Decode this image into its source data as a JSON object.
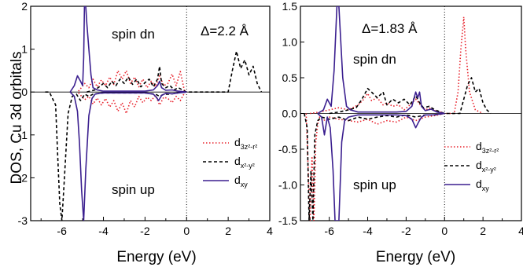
{
  "ylabel": "DOS, Cu 3d orbitals",
  "colors": {
    "d3z2": "#e8222c",
    "dx2y2": "#000000",
    "dxy": "#3b1f8f"
  },
  "chart_data": [
    {
      "type": "line",
      "xlabel": "Energy (eV)",
      "ylabel": "DOS, Cu 3d orbitals",
      "xlim": [
        -7.5,
        4
      ],
      "ylim": [
        -3,
        2
      ],
      "xticks": [
        "-6",
        "-4",
        "-2",
        "0",
        "2",
        "4"
      ],
      "yticks": [
        "-3",
        "-2",
        "-1",
        "0",
        "1",
        "2"
      ],
      "annotations": {
        "spin_dn": "spin dn",
        "spin_up": "spin up",
        "delta": "Δ=2.2 Å"
      },
      "legend_position": "lower-right",
      "legend": [
        {
          "base": "d",
          "sub": "3z²-r²",
          "style": "dotted",
          "color": "#e8222c"
        },
        {
          "base": "d",
          "sub": "x²-y²",
          "style": "dashed",
          "color": "#000000"
        },
        {
          "base": "d",
          "sub": "xy",
          "style": "solid",
          "color": "#3b1f8f"
        }
      ],
      "fermi_level": 0,
      "series": [
        {
          "key": "d3z2_dn",
          "style": "dotted",
          "color": "#e8222c",
          "x": [
            -5.2,
            -4.9,
            -4.7,
            -4.5,
            -4.3,
            -4.1,
            -3.9,
            -3.7,
            -3.5,
            -3.3,
            -3.1,
            -2.9,
            -2.7,
            -2.5,
            -2.3,
            -2.1,
            -1.9,
            -1.7,
            -1.5,
            -1.3,
            -1.1,
            -0.9,
            -0.7,
            -0.5,
            -0.3,
            -0.1
          ],
          "y": [
            0.02,
            0.2,
            0.1,
            0.3,
            0.12,
            0.28,
            0.15,
            0.35,
            0.18,
            0.5,
            0.3,
            0.5,
            0.2,
            0.35,
            0.12,
            0.3,
            0.1,
            0.25,
            0.12,
            0.38,
            0.15,
            0.2,
            0.42,
            0.15,
            0.48,
            0.02
          ]
        },
        {
          "key": "d3z2_up",
          "style": "dotted",
          "color": "#e8222c",
          "x": [
            -5.2,
            -4.9,
            -4.7,
            -4.5,
            -4.3,
            -4.1,
            -3.9,
            -3.7,
            -3.5,
            -3.3,
            -3.1,
            -2.9,
            -2.7,
            -2.5,
            -2.3,
            -2.1,
            -1.9,
            -1.7,
            -1.5,
            -1.3,
            -1.1,
            -0.9,
            -0.7,
            -0.5,
            -0.3,
            -0.1
          ],
          "y": [
            -0.02,
            -0.18,
            -0.1,
            -0.28,
            -0.14,
            -0.3,
            -0.15,
            -0.35,
            -0.2,
            -0.45,
            -0.25,
            -0.5,
            -0.2,
            -0.35,
            -0.1,
            -0.25,
            -0.12,
            -0.2,
            -0.08,
            -0.3,
            -0.12,
            -0.15,
            -0.25,
            -0.1,
            -0.2,
            -0.02
          ]
        },
        {
          "key": "dx2y2_dn",
          "style": "dashed",
          "color": "#000000",
          "x": [
            -4.8,
            -4.4,
            -4.2,
            -4.0,
            -3.8,
            -3.6,
            -3.4,
            -3.2,
            -3.0,
            -2.8,
            -2.6,
            -2.4,
            -2.2,
            -2.0,
            -1.8,
            -1.6,
            -1.4,
            -1.3,
            -1.2,
            -1.0,
            -0.8,
            -0.6,
            -0.4,
            -0.2,
            0.0,
            2.0,
            2.2,
            2.4,
            2.6,
            2.8,
            3.0,
            3.2,
            3.4,
            3.6
          ],
          "y": [
            0.0,
            0.05,
            0.12,
            0.2,
            0.1,
            0.25,
            0.15,
            0.3,
            0.2,
            0.35,
            0.18,
            0.3,
            0.12,
            0.22,
            0.3,
            0.12,
            0.3,
            0.6,
            0.2,
            0.1,
            0.15,
            0.05,
            0.1,
            0.05,
            0.0,
            0.0,
            0.5,
            0.95,
            0.55,
            0.75,
            0.4,
            0.6,
            0.2,
            0.0
          ]
        },
        {
          "key": "dx2y2_up",
          "style": "dashed",
          "color": "#000000",
          "x": [
            -6.8,
            -6.6,
            -6.5,
            -6.3,
            -6.2,
            -6.1,
            -6.0,
            -5.9,
            -5.7,
            -5.5,
            -5.3,
            -5.1,
            -4.9,
            -4.7,
            -4.5,
            -4.0,
            -3.0,
            -2.0,
            -1.5,
            -1.3,
            -1.1,
            -0.8,
            -0.4,
            0.0
          ],
          "y": [
            0.0,
            0.0,
            -0.1,
            -0.3,
            -1.5,
            -2.6,
            -3.0,
            -2.2,
            -0.5,
            -0.1,
            -0.05,
            -0.2,
            -0.05,
            -0.1,
            -0.05,
            -0.02,
            -0.02,
            -0.02,
            -0.05,
            -0.1,
            -0.05,
            -0.05,
            -0.02,
            0.0
          ]
        },
        {
          "key": "dxy_dn",
          "style": "solid",
          "color": "#3b1f8f",
          "x": [
            -5.6,
            -5.4,
            -5.25,
            -5.1,
            -5.0,
            -4.95,
            -4.9,
            -4.8,
            -4.7,
            -4.6,
            -4.5,
            -4.3,
            -4.0,
            -3.5,
            -3.0,
            -2.5,
            -2.0,
            -1.6,
            -1.4,
            -1.3,
            -1.2,
            -1.0,
            -0.7,
            -0.4,
            0.0
          ],
          "y": [
            0.0,
            0.15,
            0.38,
            0.25,
            0.15,
            0.8,
            2.4,
            1.6,
            1.0,
            0.4,
            0.1,
            0.05,
            0.02,
            0.02,
            0.02,
            0.02,
            0.02,
            0.05,
            0.15,
            0.25,
            0.1,
            0.04,
            0.05,
            0.02,
            0.0
          ]
        },
        {
          "key": "dxy_up",
          "style": "solid",
          "color": "#3b1f8f",
          "x": [
            -5.6,
            -5.4,
            -5.25,
            -5.15,
            -5.05,
            -4.95,
            -4.85,
            -4.7,
            -4.55,
            -4.4,
            -4.2,
            -4.0,
            -3.5,
            -3.0,
            -2.5,
            -2.0,
            -1.6,
            -1.45,
            -1.35,
            -1.2,
            -1.0,
            -0.7,
            -0.4,
            0.0
          ],
          "y": [
            0.0,
            -0.1,
            -0.45,
            -1.2,
            -2.3,
            -3.0,
            -1.8,
            -0.55,
            -0.15,
            -0.05,
            -0.03,
            -0.02,
            -0.02,
            -0.02,
            -0.02,
            -0.02,
            -0.05,
            -0.12,
            -0.2,
            -0.08,
            -0.03,
            -0.04,
            -0.02,
            0.0
          ]
        }
      ]
    },
    {
      "type": "line",
      "xlabel": "Energy (eV)",
      "ylabel": "",
      "xlim": [
        -7.5,
        4
      ],
      "ylim": [
        -1.5,
        1.5
      ],
      "xticks": [
        "-6",
        "-4",
        "-2",
        "0",
        "2",
        "4"
      ],
      "yticks": [
        "-1.5",
        "-1.0",
        "-0.5",
        "0.0",
        "0.5",
        "1.0",
        "1.5"
      ],
      "annotations": {
        "spin_dn": "spin dn",
        "spin_up": "spin up",
        "delta": "Δ=1.83 Å"
      },
      "legend_position": "lower-right",
      "legend": [
        {
          "base": "d",
          "sub": "3z²-r²",
          "style": "dotted",
          "color": "#e8222c"
        },
        {
          "base": "d",
          "sub": "x²-y²",
          "style": "dashed",
          "color": "#000000"
        },
        {
          "base": "d",
          "sub": "xy",
          "style": "solid",
          "color": "#3b1f8f"
        }
      ],
      "fermi_level": 0,
      "series": [
        {
          "key": "d3z2_dn",
          "style": "dotted",
          "color": "#e8222c",
          "x": [
            -7.0,
            -6.5,
            -6.0,
            -5.5,
            -5.0,
            -4.5,
            -4.2,
            -4.0,
            -3.8,
            -3.5,
            -3.2,
            -3.0,
            -2.7,
            -2.4,
            -2.1,
            -1.8,
            -1.5,
            -1.2,
            -1.0,
            -0.7,
            -0.4,
            -0.2,
            0.0,
            0.5,
            0.7,
            0.85,
            1.0,
            1.1,
            1.3,
            1.6,
            2.0
          ],
          "y": [
            0.0,
            0.02,
            0.05,
            0.08,
            0.05,
            0.12,
            0.2,
            0.28,
            0.18,
            0.22,
            0.12,
            0.15,
            0.1,
            0.12,
            0.05,
            0.12,
            0.2,
            0.1,
            0.05,
            0.08,
            0.02,
            0.02,
            0.0,
            0.0,
            0.3,
            0.9,
            1.35,
            0.9,
            0.3,
            0.05,
            0.0
          ]
        },
        {
          "key": "d3z2_up",
          "style": "dotted",
          "color": "#e8222c",
          "x": [
            -7.2,
            -7.0,
            -6.9,
            -6.8,
            -6.7,
            -6.6,
            -6.5,
            -6.3,
            -6.0,
            -5.5,
            -5.0,
            -4.5,
            -4.0,
            -3.5,
            -3.0,
            -2.5,
            -2.0,
            -1.5,
            -1.0,
            -0.5,
            0.0
          ],
          "y": [
            0.0,
            -1.5,
            -0.6,
            -1.5,
            -0.4,
            -0.15,
            -0.05,
            -0.1,
            -0.05,
            -0.08,
            -0.1,
            -0.12,
            -0.08,
            -0.15,
            -0.1,
            -0.12,
            -0.05,
            -0.1,
            -0.05,
            -0.03,
            0.0
          ]
        },
        {
          "key": "dx2y2_dn",
          "style": "dashed",
          "color": "#000000",
          "x": [
            -6.0,
            -5.5,
            -5.0,
            -4.6,
            -4.3,
            -4.0,
            -3.8,
            -3.5,
            -3.2,
            -3.0,
            -2.7,
            -2.4,
            -2.1,
            -1.8,
            -1.5,
            -1.3,
            -1.1,
            -0.8,
            -0.5,
            -0.2,
            0.0,
            0.8,
            1.0,
            1.2,
            1.4,
            1.6,
            1.8,
            2.0,
            2.2,
            2.4
          ],
          "y": [
            0.0,
            0.02,
            0.05,
            0.08,
            0.2,
            0.35,
            0.3,
            0.22,
            0.3,
            0.12,
            0.2,
            0.15,
            0.2,
            0.12,
            0.25,
            0.15,
            0.08,
            0.1,
            0.05,
            0.02,
            0.0,
            0.0,
            0.2,
            0.4,
            0.5,
            0.3,
            0.35,
            0.15,
            0.05,
            0.0
          ]
        },
        {
          "key": "dx2y2_up",
          "style": "dashed",
          "color": "#000000",
          "x": [
            -7.3,
            -7.15,
            -7.05,
            -6.95,
            -6.85,
            -6.75,
            -6.6,
            -6.4,
            -6.0,
            -5.5,
            -5.0,
            -4.5,
            -4.0,
            -3.5,
            -3.0,
            -2.5,
            -2.0,
            -1.5,
            -1.0,
            -0.5,
            0.0
          ],
          "y": [
            0.0,
            -0.2,
            -1.5,
            -0.8,
            -1.5,
            -0.3,
            -0.1,
            -0.05,
            -0.08,
            -0.05,
            -0.1,
            -0.05,
            -0.08,
            -0.05,
            -0.03,
            -0.05,
            -0.02,
            -0.05,
            -0.02,
            -0.02,
            0.0
          ]
        },
        {
          "key": "dxy_dn",
          "style": "solid",
          "color": "#3b1f8f",
          "x": [
            -6.6,
            -6.3,
            -6.1,
            -5.9,
            -5.75,
            -5.6,
            -5.5,
            -5.3,
            -5.1,
            -4.9,
            -4.5,
            -4.0,
            -3.5,
            -3.0,
            -2.5,
            -2.0,
            -1.7,
            -1.5,
            -1.4,
            -1.3,
            -1.2,
            -1.0,
            -0.7,
            -0.4,
            0.0
          ],
          "y": [
            0.0,
            0.05,
            0.2,
            0.1,
            0.6,
            1.5,
            1.5,
            0.5,
            0.1,
            0.05,
            0.02,
            0.02,
            0.02,
            0.02,
            0.02,
            0.03,
            0.1,
            0.3,
            0.22,
            0.3,
            0.1,
            0.04,
            0.06,
            0.02,
            0.0
          ]
        },
        {
          "key": "dxy_up",
          "style": "solid",
          "color": "#3b1f8f",
          "x": [
            -6.6,
            -6.4,
            -6.25,
            -6.1,
            -5.95,
            -5.8,
            -5.7,
            -5.6,
            -5.5,
            -5.35,
            -5.2,
            -5.0,
            -4.5,
            -4.0,
            -3.5,
            -3.0,
            -2.5,
            -2.0,
            -1.7,
            -1.5,
            -1.35,
            -1.2,
            -1.0,
            -0.6,
            0.0
          ],
          "y": [
            0.0,
            -0.05,
            -0.3,
            -0.05,
            -0.2,
            -0.8,
            -1.5,
            -1.5,
            -1.5,
            -0.4,
            -0.1,
            -0.05,
            -0.02,
            -0.02,
            -0.02,
            -0.02,
            -0.02,
            -0.03,
            -0.08,
            -0.2,
            -0.12,
            -0.05,
            -0.02,
            -0.02,
            0.0
          ]
        }
      ]
    }
  ]
}
